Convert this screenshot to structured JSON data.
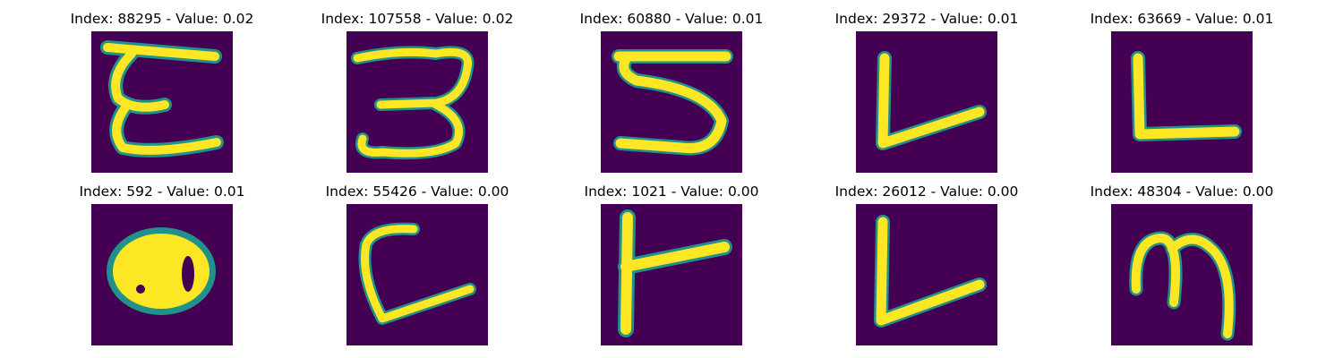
{
  "background_color": "#440154",
  "ink_color": "#fde725",
  "edge_color": "#21918c",
  "panels": [
    {
      "title": "Index: 88295 - Value: 0.02",
      "index": 88295,
      "value": 0.02,
      "glyph": "E"
    },
    {
      "title": "Index: 107558 - Value: 0.02",
      "index": 107558,
      "value": 0.02,
      "glyph": "3"
    },
    {
      "title": "Index: 60880 - Value: 0.01",
      "index": 60880,
      "value": 0.01,
      "glyph": "5"
    },
    {
      "title": "Index: 29372 - Value: 0.01",
      "index": 29372,
      "value": 0.01,
      "glyph": "L"
    },
    {
      "title": "Index: 63669 - Value: 0.01",
      "index": 63669,
      "value": 0.01,
      "glyph": "L"
    },
    {
      "title": "Index: 592 - Value: 0.01",
      "index": 592,
      "value": 0.01,
      "glyph": "blob"
    },
    {
      "title": "Index: 55426 - Value: 0.00",
      "index": 55426,
      "value": 0.0,
      "glyph": "L"
    },
    {
      "title": "Index: 1021 - Value: 0.00",
      "index": 1021,
      "value": 0.0,
      "glyph": "T"
    },
    {
      "title": "Index: 26012 - Value: 0.00",
      "index": 26012,
      "value": 0.0,
      "glyph": "L"
    },
    {
      "title": "Index: 48304 - Value: 0.00",
      "index": 48304,
      "value": 0.0,
      "glyph": "m"
    }
  ]
}
